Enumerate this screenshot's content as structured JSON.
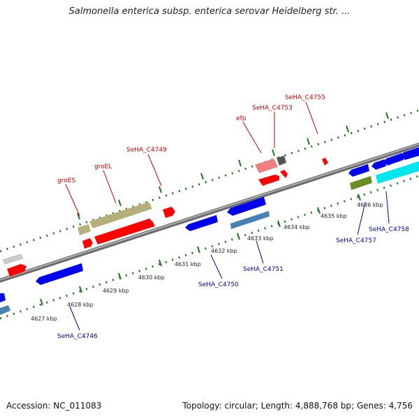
{
  "title": "Salmonella enterica subsp. enterica serovar Heidelberg str. ...",
  "accession": "Accession: NC_011083",
  "summary": "Topology: circular; Length: 4,888,768 bp; Genes: 4,756",
  "colors": {
    "backbone": "#808080",
    "forward_gene": "#ff0000",
    "reverse_gene": "#0000ee",
    "tick_green": "#1f7a1f",
    "label_forward": "#cc0000",
    "label_reverse": "#0000aa"
  },
  "scale_labels": [
    {
      "kbp": 4627,
      "text": "4627 kbp"
    },
    {
      "kbp": 4628,
      "text": "4628 kbp"
    },
    {
      "kbp": 4629,
      "text": "4629 kbp"
    },
    {
      "kbp": 4630,
      "text": "4630 kbp"
    },
    {
      "kbp": 4631,
      "text": "4631 kbp"
    },
    {
      "kbp": 4632,
      "text": "4632 kbp"
    },
    {
      "kbp": 4633,
      "text": "4633 kbp"
    },
    {
      "kbp": 4634,
      "text": "4634 kbp"
    },
    {
      "kbp": 4635,
      "text": "4635 kbp"
    },
    {
      "kbp": 4636,
      "text": "4636 kbp"
    }
  ],
  "gene_labels": [
    {
      "name": "groES",
      "strand": "forward"
    },
    {
      "name": "groEL",
      "strand": "forward"
    },
    {
      "name": "SeHA_C4749",
      "strand": "forward"
    },
    {
      "name": "efp",
      "strand": "forward"
    },
    {
      "name": "SeHA_C4753",
      "strand": "forward"
    },
    {
      "name": "SeHA_C4755",
      "strand": "forward"
    },
    {
      "name": "SeHA_C4746",
      "strand": "reverse"
    },
    {
      "name": "SeHA_C4750",
      "strand": "reverse"
    },
    {
      "name": "SeHA_C4751",
      "strand": "reverse"
    },
    {
      "name": "SeHA_C4757",
      "strand": "reverse"
    },
    {
      "name": "SeHA_C4758",
      "strand": "reverse"
    }
  ]
}
